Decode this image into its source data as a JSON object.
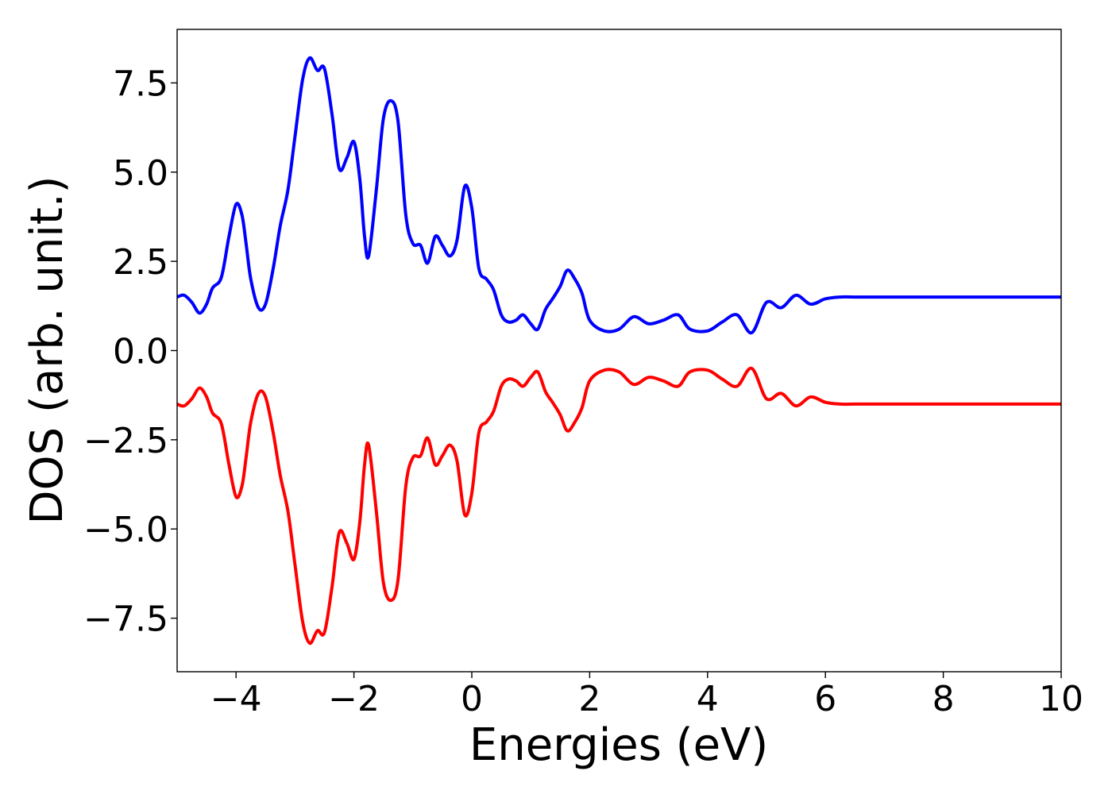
{
  "chart_data": {
    "type": "line",
    "title": "",
    "xlabel": "Energies (eV)",
    "ylabel": "DOS (arb. unit.)",
    "xlim": [
      -5,
      10
    ],
    "ylim": [
      -9.0,
      9.0
    ],
    "xticks": [
      -4,
      -2,
      0,
      2,
      4,
      6,
      8,
      10
    ],
    "xtick_labels": [
      "−4",
      "−2",
      "0",
      "2",
      "4",
      "6",
      "8",
      "10"
    ],
    "yticks": [
      -7.5,
      -5.0,
      -2.5,
      0.0,
      2.5,
      5.0,
      7.5
    ],
    "ytick_labels": [
      "−7.5",
      "−5.0",
      "−2.5",
      "0.0",
      "2.5",
      "5.0",
      "7.5"
    ],
    "grid": false,
    "legend": null,
    "series": [
      {
        "color": "#0000ff",
        "x": [
          -5.0,
          -4.88,
          -4.75,
          -4.62,
          -4.5,
          -4.4,
          -4.25,
          -4.12,
          -4.0,
          -3.9,
          -3.83,
          -3.75,
          -3.62,
          -3.5,
          -3.37,
          -3.25,
          -3.12,
          -3.0,
          -2.87,
          -2.75,
          -2.62,
          -2.5,
          -2.37,
          -2.25,
          -2.12,
          -2.0,
          -1.9,
          -1.82,
          -1.75,
          -1.62,
          -1.5,
          -1.37,
          -1.25,
          -1.12,
          -1.0,
          -0.87,
          -0.75,
          -0.62,
          -0.5,
          -0.37,
          -0.25,
          -0.12,
          0.0,
          0.12,
          0.25,
          0.37,
          0.5,
          0.62,
          0.75,
          0.87,
          1.0,
          1.12,
          1.25,
          1.37,
          1.5,
          1.62,
          1.75,
          1.87,
          2.0,
          2.25,
          2.5,
          2.75,
          3.0,
          3.25,
          3.5,
          3.7,
          4.0,
          4.25,
          4.5,
          4.75,
          5.0,
          5.25,
          5.5,
          5.75,
          6.0,
          6.25,
          6.5,
          6.75,
          7.0,
          7.25,
          7.5,
          7.75,
          8.0,
          8.25,
          8.5,
          8.75,
          9.0,
          9.25,
          9.5,
          9.75,
          10.0
        ],
        "values": [
          1.5,
          1.55,
          1.35,
          1.05,
          1.3,
          1.75,
          2.05,
          3.2,
          4.1,
          3.8,
          3.0,
          2.0,
          1.2,
          1.3,
          2.3,
          3.5,
          4.5,
          6.0,
          7.6,
          8.2,
          7.85,
          7.9,
          6.6,
          5.1,
          5.4,
          5.85,
          4.8,
          3.2,
          2.65,
          4.5,
          6.5,
          7.0,
          6.4,
          3.8,
          3.0,
          2.95,
          2.45,
          3.2,
          2.95,
          2.65,
          3.1,
          4.6,
          4.0,
          2.3,
          2.0,
          1.7,
          1.0,
          0.8,
          0.85,
          1.0,
          0.75,
          0.6,
          1.15,
          1.45,
          1.8,
          2.25,
          2.0,
          1.6,
          0.85,
          0.55,
          0.6,
          0.95,
          0.75,
          0.85,
          1.0,
          0.6,
          0.55,
          0.8,
          1.0,
          0.5,
          1.35,
          1.2,
          1.55,
          1.3,
          1.45,
          1.5,
          1.5,
          1.5,
          1.5,
          1.5,
          1.5,
          1.5,
          1.5,
          1.5,
          1.5,
          1.5,
          1.5,
          1.5,
          1.5,
          1.5,
          1.5
        ]
      },
      {
        "color": "#ff0000",
        "x": [
          -5.0,
          -4.88,
          -4.75,
          -4.62,
          -4.5,
          -4.4,
          -4.25,
          -4.12,
          -4.0,
          -3.9,
          -3.83,
          -3.75,
          -3.62,
          -3.5,
          -3.37,
          -3.25,
          -3.12,
          -3.0,
          -2.87,
          -2.75,
          -2.62,
          -2.5,
          -2.37,
          -2.25,
          -2.12,
          -2.0,
          -1.9,
          -1.82,
          -1.75,
          -1.62,
          -1.5,
          -1.37,
          -1.25,
          -1.12,
          -1.0,
          -0.87,
          -0.75,
          -0.62,
          -0.5,
          -0.37,
          -0.25,
          -0.12,
          0.0,
          0.12,
          0.25,
          0.37,
          0.5,
          0.62,
          0.75,
          0.87,
          1.0,
          1.12,
          1.25,
          1.37,
          1.5,
          1.62,
          1.75,
          1.87,
          2.0,
          2.25,
          2.5,
          2.75,
          3.0,
          3.25,
          3.5,
          3.7,
          4.0,
          4.25,
          4.5,
          4.75,
          5.0,
          5.25,
          5.5,
          5.75,
          6.0,
          6.25,
          6.5,
          6.75,
          7.0,
          7.25,
          7.5,
          7.75,
          8.0,
          8.25,
          8.5,
          8.75,
          9.0,
          9.25,
          9.5,
          9.75,
          10.0
        ],
        "values": [
          -1.5,
          -1.55,
          -1.35,
          -1.05,
          -1.3,
          -1.75,
          -2.05,
          -3.2,
          -4.1,
          -3.8,
          -3.0,
          -2.0,
          -1.2,
          -1.3,
          -2.3,
          -3.5,
          -4.5,
          -6.0,
          -7.6,
          -8.2,
          -7.85,
          -7.9,
          -6.6,
          -5.1,
          -5.4,
          -5.85,
          -4.8,
          -3.2,
          -2.65,
          -4.5,
          -6.5,
          -7.0,
          -6.4,
          -3.8,
          -3.0,
          -2.95,
          -2.45,
          -3.2,
          -2.95,
          -2.65,
          -3.1,
          -4.6,
          -4.0,
          -2.3,
          -2.0,
          -1.7,
          -1.0,
          -0.8,
          -0.85,
          -1.0,
          -0.75,
          -0.6,
          -1.15,
          -1.45,
          -1.8,
          -2.25,
          -2.0,
          -1.6,
          -0.85,
          -0.55,
          -0.6,
          -0.95,
          -0.75,
          -0.85,
          -1.0,
          -0.6,
          -0.55,
          -0.8,
          -1.0,
          -0.5,
          -1.35,
          -1.2,
          -1.55,
          -1.3,
          -1.45,
          -1.5,
          -1.5,
          -1.5,
          -1.5,
          -1.5,
          -1.5,
          -1.5,
          -1.5,
          -1.5,
          -1.5,
          -1.5,
          -1.5,
          -1.5,
          -1.5,
          -1.5,
          -1.5
        ]
      }
    ]
  }
}
